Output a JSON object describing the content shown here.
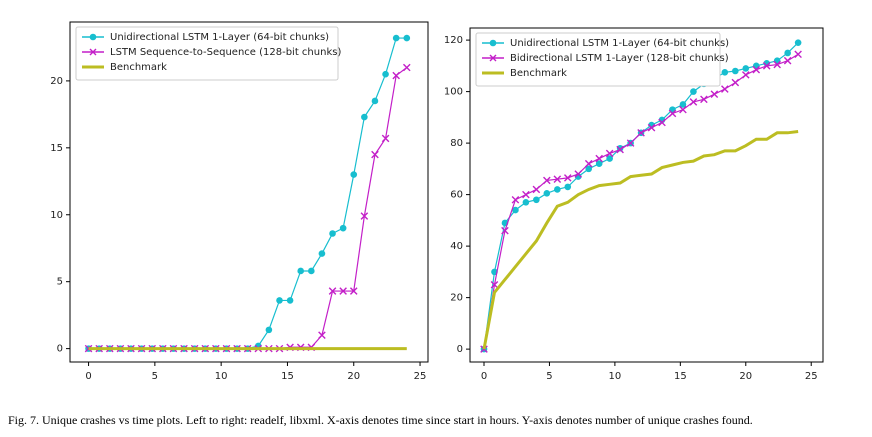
{
  "chart_data": [
    {
      "type": "line",
      "x": [
        0,
        0.8,
        1.6,
        2.4,
        3.2,
        4,
        4.8,
        5.6,
        6.4,
        7.2,
        8,
        8.8,
        9.6,
        10.4,
        11.2,
        12,
        12.8,
        13.6,
        14.4,
        15.2,
        16,
        16.8,
        17.6,
        18.4,
        19.2,
        20,
        20.8,
        21.6,
        22.4,
        23.2,
        24
      ],
      "series": [
        {
          "name": "Unidirectional LSTM 1-Layer (64-bit chunks)",
          "color": "#17becf",
          "marker": "o",
          "values": [
            0,
            0,
            0,
            0,
            0,
            0,
            0,
            0,
            0,
            0,
            0,
            0,
            0,
            0,
            0,
            0,
            0.2,
            1.4,
            3.6,
            3.6,
            5.8,
            5.8,
            7.1,
            8.6,
            9.0,
            13,
            17.3,
            18.5,
            20.5,
            23.2,
            23.2
          ]
        },
        {
          "name": "LSTM Sequence-to-Sequence (128-bit chunks)",
          "color": "#c31fc8",
          "marker": "x",
          "values": [
            0,
            0,
            0,
            0,
            0,
            0,
            0,
            0,
            0,
            0,
            0,
            0,
            0,
            0,
            0,
            0,
            0,
            0,
            0,
            0.1,
            0.1,
            0.1,
            1.0,
            4.3,
            4.3,
            4.3,
            9.9,
            14.5,
            15.7,
            20.4,
            21.0
          ]
        },
        {
          "name": "Benchmark",
          "color": "#bcbd22",
          "linewidth": 3,
          "values": [
            0,
            0,
            0,
            0,
            0,
            0,
            0,
            0,
            0,
            0,
            0,
            0,
            0,
            0,
            0,
            0,
            0,
            0,
            0,
            0,
            0,
            0,
            0,
            0,
            0,
            0,
            0,
            0,
            0,
            0,
            0
          ]
        }
      ],
      "xlim": [
        -1.4,
        25.6
      ],
      "xticks": [
        0,
        5,
        10,
        15,
        20,
        25
      ],
      "ylim": [
        -1,
        24.4
      ],
      "yticks": [
        0,
        5,
        10,
        15,
        20
      ],
      "legend": "upper left"
    },
    {
      "type": "line",
      "x": [
        0,
        0.8,
        1.6,
        2.4,
        3.2,
        4,
        4.8,
        5.6,
        6.4,
        7.2,
        8,
        8.8,
        9.6,
        10.4,
        11.2,
        12,
        12.8,
        13.6,
        14.4,
        15.2,
        16,
        16.8,
        17.6,
        18.4,
        19.2,
        20,
        20.8,
        21.6,
        22.4,
        23.2,
        24
      ],
      "series": [
        {
          "name": "Unidirectional LSTM 1-Layer (64-bit chunks)",
          "color": "#17becf",
          "marker": "o",
          "values": [
            0,
            30,
            49,
            54,
            57,
            58,
            60.5,
            62,
            63,
            67,
            70,
            72,
            74,
            78,
            80,
            84,
            87,
            89,
            93,
            95,
            100,
            103,
            105,
            107.5,
            108,
            109,
            110,
            111,
            112,
            115,
            119
          ]
        },
        {
          "name": "Bidirectional LSTM 1-Layer (128-bit chunks)",
          "color": "#c31fc8",
          "marker": "x",
          "values": [
            0,
            25,
            46,
            58,
            60,
            62,
            65.5,
            66,
            66.5,
            68,
            72,
            74,
            76,
            77.5,
            80,
            84,
            86,
            88,
            91.5,
            93,
            96,
            97,
            99,
            101,
            103.5,
            106.5,
            108.5,
            110,
            110.5,
            112,
            114.5
          ]
        },
        {
          "name": "Benchmark",
          "color": "#bcbd22",
          "linewidth": 3,
          "values": [
            0,
            22,
            27,
            32,
            37,
            42,
            49,
            55.5,
            57,
            60,
            62,
            63.5,
            64,
            64.5,
            67,
            67.5,
            68,
            70.5,
            71.5,
            72.5,
            73,
            75,
            75.5,
            77,
            77,
            79,
            81.5,
            81.5,
            84,
            84,
            84.5
          ]
        }
      ],
      "xlim": [
        -1.07,
        25.9
      ],
      "xticks": [
        0,
        5,
        10,
        15,
        20,
        25
      ],
      "ylim": [
        -5,
        124.7
      ],
      "yticks": [
        0,
        20,
        40,
        60,
        80,
        100,
        120
      ],
      "legend": "upper left"
    }
  ],
  "caption": "Fig. 7.  Unique crashes vs time plots. Left to right: readelf, libxml. X-axis denotes time since start in hours. Y-axis denotes number of unique crashes found."
}
